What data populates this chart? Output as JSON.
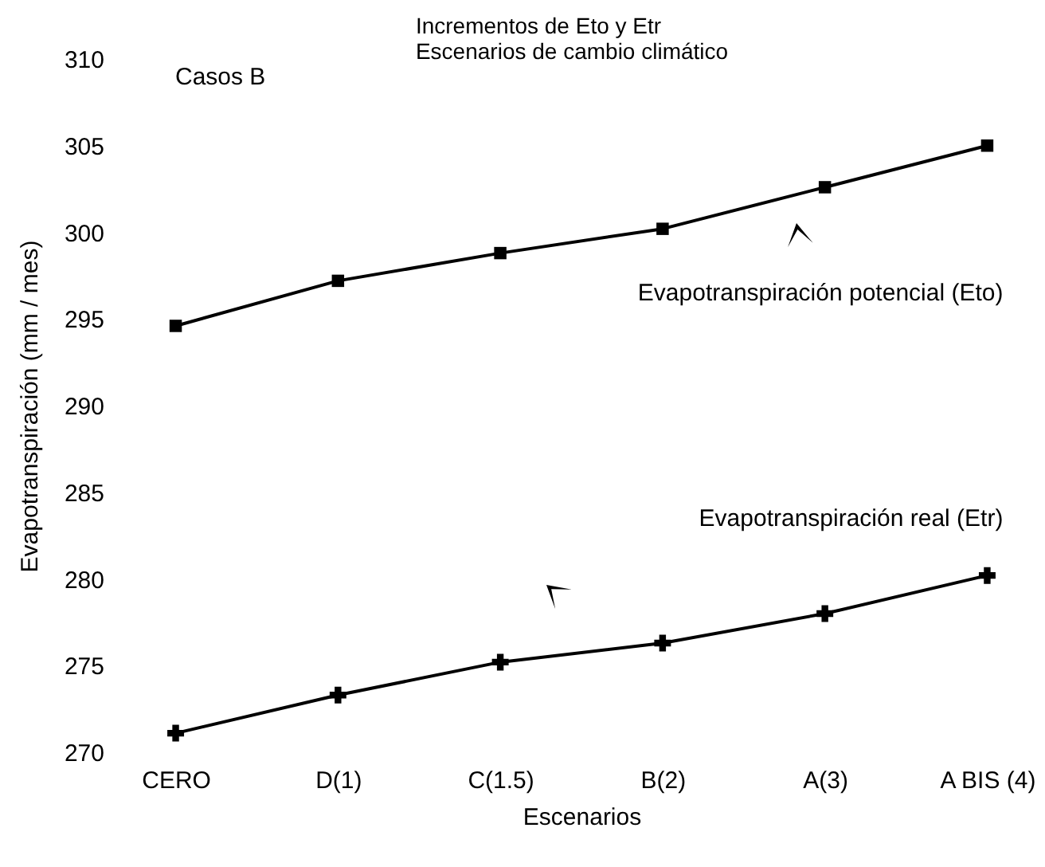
{
  "chart_data": {
    "type": "line",
    "title": "Incrementos de Eto y Etr",
    "subtitle": "Escenarios de cambio climático",
    "xlabel": "Escenarios",
    "ylabel": "Evapotranspiración (mm / mes)",
    "categories": [
      "CERO",
      "D(1)",
      "C(1.5)",
      "B(2)",
      "A(3)",
      "A BIS (4)"
    ],
    "series": [
      {
        "name": "Evapotranspiración potencial (Eto)",
        "color": "#000000",
        "marker": "square",
        "values": [
          294.6,
          297.2,
          298.8,
          300.2,
          302.6,
          305.0
        ]
      },
      {
        "name": "Evapotranspiración real (Etr)",
        "color": "#000000",
        "marker": "cross",
        "values": [
          271.1,
          273.3,
          275.2,
          276.3,
          278.0,
          280.2
        ]
      }
    ],
    "annotations": [
      "Casos B"
    ],
    "ylim": [
      270,
      310
    ],
    "yticks": [
      270,
      275,
      280,
      285,
      290,
      295,
      300,
      305,
      310
    ],
    "grid": false
  }
}
